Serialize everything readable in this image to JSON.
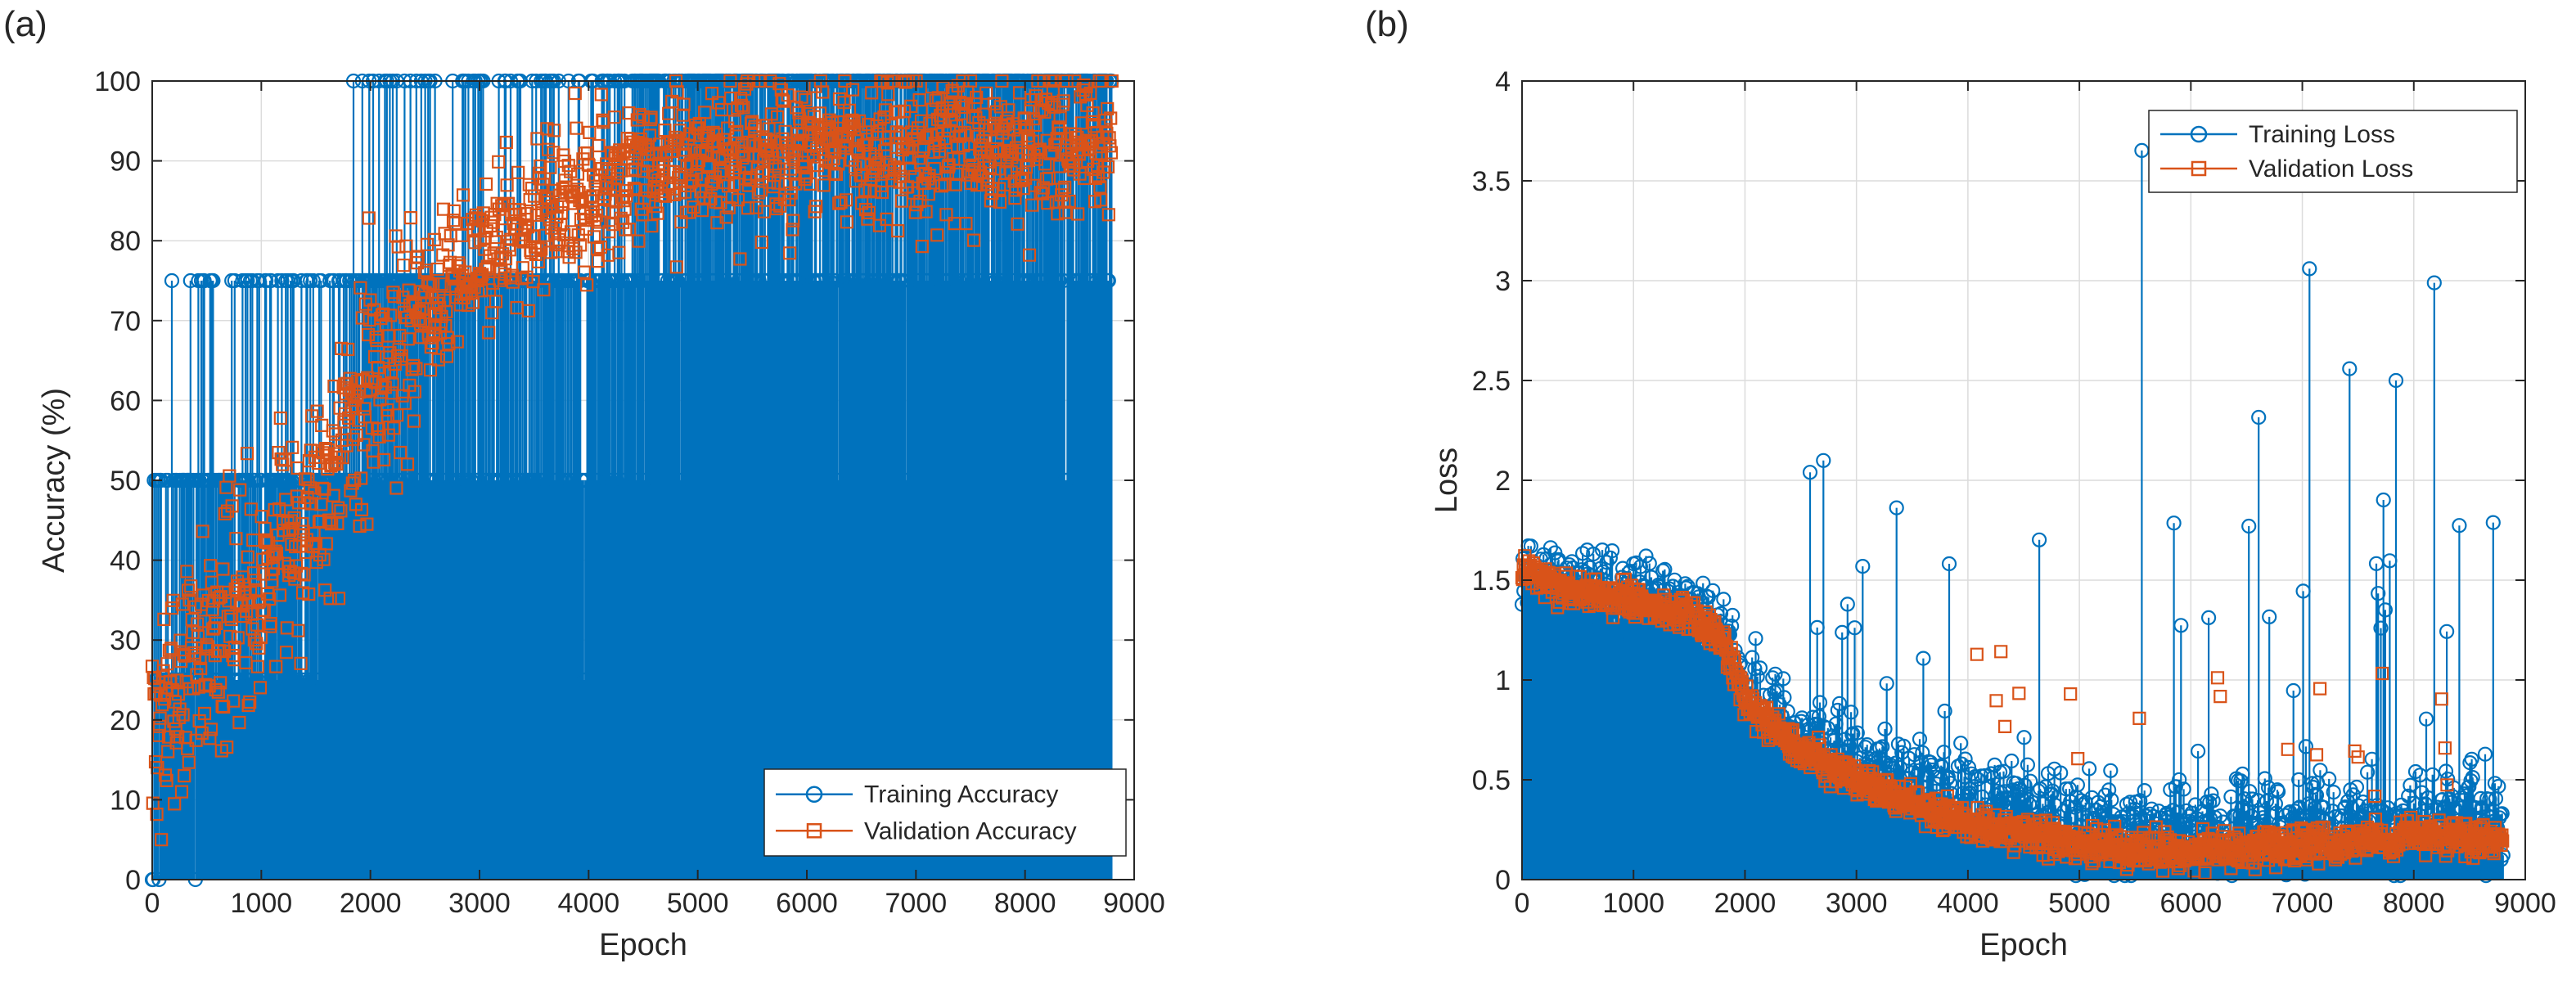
{
  "chart_data": [
    {
      "panel": "(a)",
      "type": "line",
      "title": "",
      "xlabel": "Epoch",
      "ylabel": "Accuracy (%)",
      "xlim": [
        0,
        9000
      ],
      "ylim": [
        0,
        100
      ],
      "xticks": [
        0,
        1000,
        2000,
        3000,
        4000,
        5000,
        6000,
        7000,
        8000,
        9000
      ],
      "yticks": [
        0,
        10,
        20,
        30,
        40,
        50,
        60,
        70,
        80,
        90,
        100
      ],
      "grid": true,
      "legend_location": "bottom-right",
      "n_epochs": 8800,
      "series": [
        {
          "name": "Training Accuracy",
          "marker": "circle",
          "color": "#0072BD",
          "trend": {
            "x": [
              0,
              500,
              1000,
              1500,
              2000,
              2500,
              3000,
              3500,
              4000,
              5000,
              6000,
              7000,
              8000,
              8800
            ],
            "y": [
              25,
              50,
              50,
              50,
              75,
              75,
              75,
              75,
              75,
              100,
              100,
              100,
              100,
              100
            ]
          },
          "discrete_levels": [
            0,
            25,
            50,
            75,
            100
          ]
        },
        {
          "name": "Validation Accuracy",
          "marker": "square",
          "color": "#D95319",
          "trend": {
            "x": [
              0,
              500,
              1000,
              1500,
              2000,
              2500,
              3000,
              3500,
              4000,
              5000,
              6000,
              7000,
              8000,
              8800
            ],
            "y": [
              18,
              30,
              38,
              48,
              62,
              72,
              78,
              83,
              86,
              90,
              91,
              91,
              92,
              92
            ]
          }
        }
      ]
    },
    {
      "panel": "(b)",
      "type": "line",
      "title": "",
      "xlabel": "Epoch",
      "ylabel": "Loss",
      "xlim": [
        0,
        9000
      ],
      "ylim": [
        0,
        4
      ],
      "xticks": [
        0,
        1000,
        2000,
        3000,
        4000,
        5000,
        6000,
        7000,
        8000,
        9000
      ],
      "yticks": [
        0,
        0.5,
        1,
        1.5,
        2,
        2.5,
        3,
        3.5,
        4
      ],
      "grid": true,
      "legend_location": "top-right",
      "n_epochs": 8800,
      "series": [
        {
          "name": "Training Loss",
          "marker": "circle",
          "color": "#0072BD",
          "trend": {
            "x": [
              0,
              500,
              1000,
              1500,
              1800,
              2000,
              2500,
              3000,
              3500,
              4000,
              5000,
              6000,
              7000,
              8000,
              8800
            ],
            "y": [
              1.55,
              1.45,
              1.42,
              1.35,
              1.25,
              0.95,
              0.72,
              0.58,
              0.48,
              0.38,
              0.28,
              0.25,
              0.28,
              0.3,
              0.3
            ]
          }
        },
        {
          "name": "Validation Loss",
          "marker": "square",
          "color": "#D95319",
          "trend": {
            "x": [
              0,
              500,
              1000,
              1500,
              1800,
              2000,
              2500,
              3000,
              3500,
              4000,
              5000,
              6000,
              7000,
              8000,
              8800
            ],
            "y": [
              1.55,
              1.45,
              1.4,
              1.32,
              1.2,
              0.9,
              0.65,
              0.5,
              0.38,
              0.28,
              0.18,
              0.14,
              0.17,
              0.22,
              0.2
            ]
          }
        }
      ]
    }
  ],
  "colors": {
    "training": "#0072BD",
    "validation": "#D95319",
    "grid": "#dcdcdc",
    "axis": "#262626"
  }
}
